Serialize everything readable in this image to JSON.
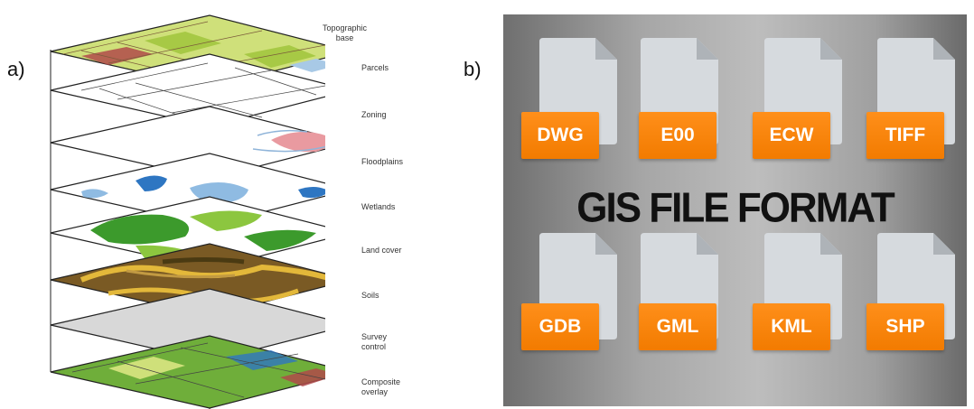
{
  "panel_a": {
    "label": "a)",
    "layers": [
      {
        "name": "Topographic\nbase"
      },
      {
        "name": "Parcels"
      },
      {
        "name": "Zoning"
      },
      {
        "name": "Floodplains"
      },
      {
        "name": "Wetlands"
      },
      {
        "name": "Land cover"
      },
      {
        "name": "Soils"
      },
      {
        "name": "Survey\ncontrol"
      },
      {
        "name": "Composite\noverlay"
      }
    ]
  },
  "panel_b": {
    "label": "b)",
    "title": "GIS FILE FORMAT",
    "formats_top": [
      "DWG",
      "E00",
      "ECW",
      "TIFF"
    ],
    "formats_bottom": [
      "GDB",
      "GML",
      "KML",
      "SHP"
    ],
    "colors": {
      "badge": "#f58200",
      "card": "#d6dade",
      "title": "#111111"
    }
  }
}
